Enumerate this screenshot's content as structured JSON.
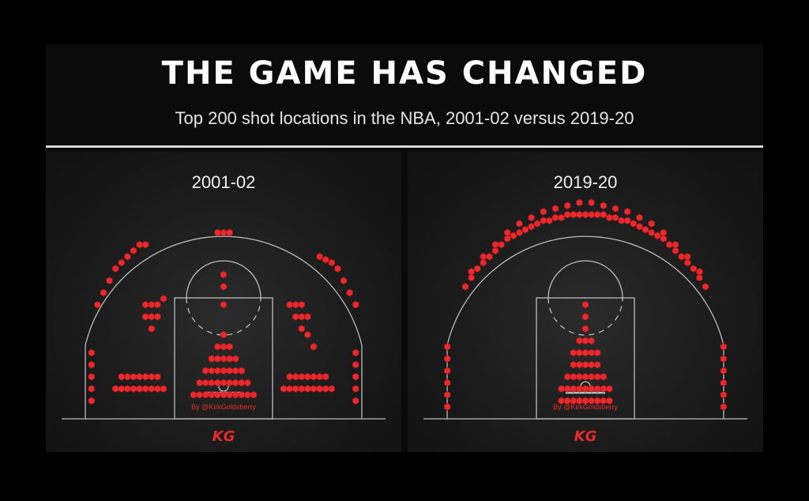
{
  "header": {
    "title": "THE GAME HAS CHANGED",
    "subtitle": "Top 200 shot locations in the NBA, 2001-02 versus 2019-20"
  },
  "colors": {
    "background": "#000000",
    "hex": "#e8292d",
    "court_lines": "#bdbdbd",
    "credit": "#e8292d"
  },
  "chart_data": [
    {
      "type": "scatter",
      "title": "2001-02",
      "description_units": "feet: x = lateral offset from basket (negative = left), y = distance from baseline",
      "credit": "By @KirkGoldsberry",
      "logo": "KG",
      "clusters": [
        {
          "zone": "left-corner-three",
          "x": [
            -22,
            -22,
            -22,
            -22,
            -22
          ],
          "y": [
            3,
            5,
            7,
            9,
            11
          ]
        },
        {
          "zone": "right-corner-three",
          "x": [
            22,
            22,
            22,
            22,
            22
          ],
          "y": [
            3,
            5,
            7,
            9,
            11
          ]
        },
        {
          "zone": "left-wing-three",
          "x": [
            -21,
            -20,
            -19,
            -18,
            -17,
            -16,
            -15,
            -14,
            -13
          ],
          "y": [
            19,
            21,
            23,
            25,
            26,
            27,
            28,
            29,
            29
          ]
        },
        {
          "zone": "right-wing-three",
          "x": [
            18,
            19,
            20,
            21,
            22,
            16,
            17
          ],
          "y": [
            26,
            25,
            23,
            21,
            19,
            27,
            26.5
          ]
        },
        {
          "zone": "top-of-key",
          "x": [
            -1,
            0,
            1,
            0,
            0,
            0
          ],
          "y": [
            31,
            31,
            31,
            24,
            22,
            19
          ]
        },
        {
          "zone": "left-elbow-midrange",
          "x": [
            -13,
            -12,
            -11,
            -13,
            -12,
            -11,
            -12,
            -10
          ],
          "y": [
            19,
            19,
            19,
            17,
            17,
            17,
            15,
            20
          ]
        },
        {
          "zone": "right-elbow-midrange",
          "x": [
            11,
            12,
            13,
            12,
            13,
            14,
            13,
            14,
            15
          ],
          "y": [
            19,
            19,
            19,
            17,
            17,
            17,
            15,
            14,
            12
          ]
        },
        {
          "zone": "left-baseline-midrange",
          "x": [
            -18,
            -17,
            -16,
            -15,
            -14,
            -13,
            -12,
            -11,
            -10,
            -17,
            -16,
            -15,
            -14,
            -13,
            -12,
            -11
          ],
          "y": [
            5,
            5,
            5,
            5,
            5,
            5,
            5,
            5,
            5,
            7,
            7,
            7,
            7,
            7,
            7,
            7
          ]
        },
        {
          "zone": "right-baseline-midrange",
          "x": [
            10,
            11,
            12,
            13,
            14,
            15,
            16,
            17,
            18,
            11,
            12,
            13,
            14,
            15,
            16,
            17
          ],
          "y": [
            5,
            5,
            5,
            5,
            5,
            5,
            5,
            5,
            5,
            7,
            7,
            7,
            7,
            7,
            7,
            7
          ]
        },
        {
          "zone": "paint",
          "x": [
            -5,
            -4,
            -3,
            -2,
            -1,
            0,
            1,
            2,
            3,
            4,
            5,
            -4,
            -3,
            -2,
            -1,
            0,
            1,
            2,
            3,
            4,
            -3,
            -2,
            -1,
            0,
            1,
            2,
            3,
            -2,
            -1,
            0,
            1,
            2,
            -1,
            0,
            1,
            0
          ],
          "y": [
            4,
            4,
            4,
            4,
            4,
            4,
            4,
            4,
            4,
            4,
            4,
            6,
            6,
            6,
            6,
            6,
            6,
            6,
            6,
            6,
            8,
            8,
            8,
            8,
            8,
            8,
            8,
            10,
            10,
            10,
            10,
            10,
            12,
            12,
            12,
            14
          ]
        }
      ]
    },
    {
      "type": "scatter",
      "title": "2019-20",
      "description_units": "feet: x = lateral offset from basket (negative = left), y = distance from baseline",
      "credit": "By @KirkGoldsberry",
      "logo": "KG",
      "clusters": [
        {
          "zone": "left-corner-three",
          "x": [
            -23,
            -23,
            -23,
            -23,
            -23,
            -23
          ],
          "y": [
            2,
            4,
            6,
            8,
            10,
            12
          ]
        },
        {
          "zone": "right-corner-three",
          "x": [
            23,
            23,
            23,
            23,
            23,
            23
          ],
          "y": [
            2,
            4,
            6,
            8,
            10,
            12
          ]
        },
        {
          "zone": "above-break-three",
          "x": [
            -20,
            -19,
            -18,
            -17,
            -16,
            -15,
            -14,
            -13,
            -12,
            -11,
            -10,
            -9,
            -8,
            -7,
            -6,
            -5,
            -4,
            -3,
            -2,
            -1,
            0,
            1,
            2,
            3,
            4,
            5,
            6,
            7,
            8,
            9,
            10,
            11,
            12,
            13,
            14,
            15,
            16,
            17,
            18,
            19,
            20,
            -19,
            -17,
            -15,
            -13,
            -11,
            -9,
            -7,
            -5,
            -3,
            -1,
            1,
            3,
            5,
            7,
            9,
            11,
            13,
            15,
            17,
            19
          ],
          "y": [
            22,
            23.5,
            25,
            26,
            27,
            28,
            29,
            30,
            30.5,
            31,
            31.5,
            32,
            32.5,
            33,
            33,
            33.5,
            33.5,
            34,
            34,
            34,
            34,
            34,
            34,
            34,
            33.5,
            33.5,
            33,
            33,
            32.5,
            32,
            31.5,
            31,
            30.5,
            30,
            29,
            28,
            27,
            26,
            25,
            23.5,
            22,
            24.5,
            27,
            29,
            31,
            32.5,
            33.5,
            34.5,
            35,
            35.5,
            36,
            36,
            35.5,
            35,
            34.5,
            33.5,
            32.5,
            31,
            29,
            27,
            24.5
          ]
        },
        {
          "zone": "paint",
          "x": [
            -4,
            -3,
            -2,
            -1,
            0,
            1,
            2,
            3,
            4,
            -4,
            -3,
            -2,
            -1,
            0,
            1,
            2,
            3,
            4,
            -3,
            -2,
            -1,
            0,
            1,
            2,
            3,
            -2,
            -1,
            0,
            1,
            2,
            -2,
            -1,
            0,
            1,
            2,
            -1,
            0,
            1,
            0,
            0,
            0
          ],
          "y": [
            3,
            3,
            3,
            3,
            3,
            3,
            3,
            3,
            3,
            5,
            5,
            5,
            5,
            5,
            5,
            5,
            5,
            5,
            7,
            7,
            7,
            7,
            7,
            7,
            7,
            9,
            9,
            9,
            9,
            9,
            11,
            11,
            11,
            11,
            11,
            13,
            13,
            13,
            15,
            17,
            19
          ]
        }
      ]
    }
  ]
}
